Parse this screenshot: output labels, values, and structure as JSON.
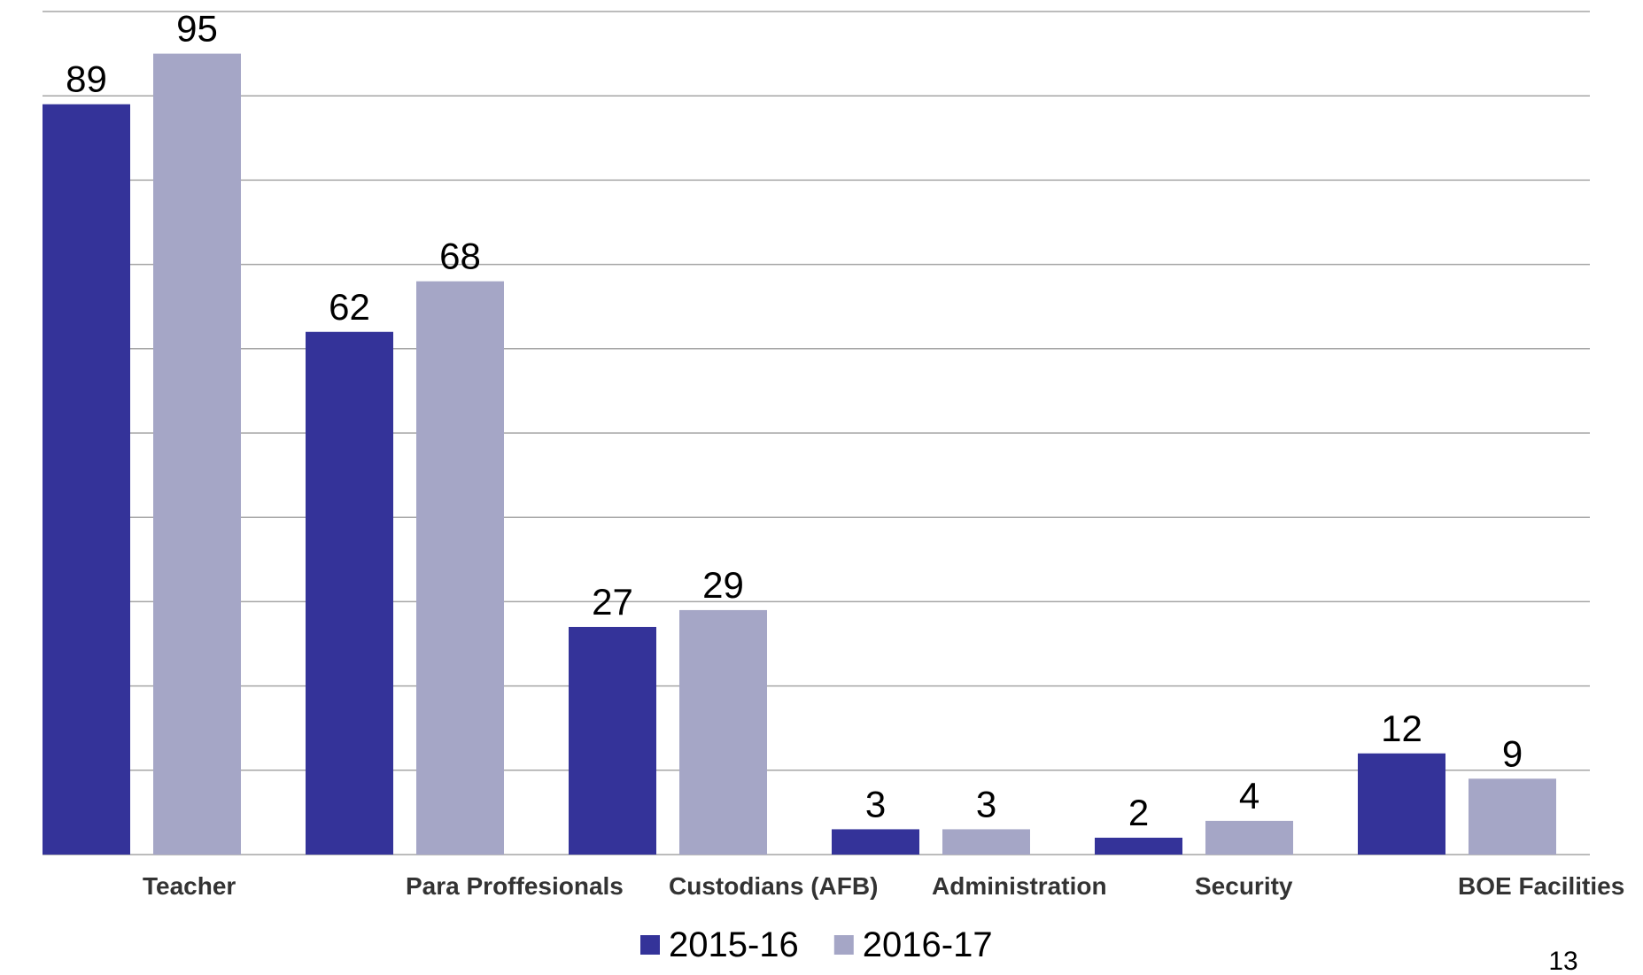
{
  "chart_data": {
    "type": "bar",
    "categories": [
      "Teacher",
      "Para Proffesionals",
      "Custodians (AFB)",
      "Administration",
      "Security",
      "BOE Facilities"
    ],
    "series": [
      {
        "name": "2015-16",
        "color": "#343399",
        "values": [
          89,
          62,
          27,
          3,
          2,
          12
        ]
      },
      {
        "name": "2016-17",
        "color": "#a5a6c6",
        "values": [
          95,
          68,
          29,
          3,
          4,
          9
        ]
      }
    ],
    "ylim": [
      0,
      100
    ],
    "yticks": [
      0,
      10,
      20,
      30,
      40,
      50,
      60,
      70,
      80,
      90,
      100
    ],
    "grid": true,
    "legend": "bottom"
  },
  "page_number": "13"
}
